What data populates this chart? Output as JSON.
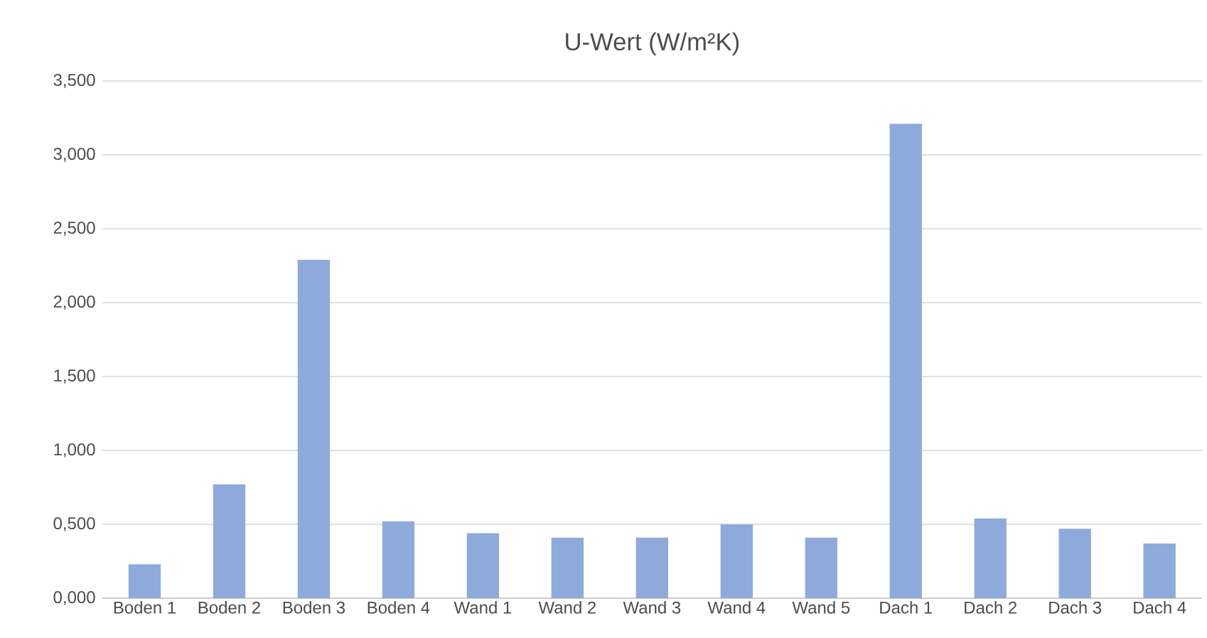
{
  "chart_data": {
    "type": "bar",
    "title": "U-Wert (W/m²K)",
    "categories": [
      "Boden 1",
      "Boden 2",
      "Boden 3",
      "Boden 4",
      "Wand 1",
      "Wand 2",
      "Wand 3",
      "Wand 4",
      "Wand 5",
      "Dach 1",
      "Dach 2",
      "Dach 3",
      "Dach 4"
    ],
    "values": [
      0.23,
      0.77,
      2.29,
      0.52,
      0.44,
      0.41,
      0.41,
      0.5,
      0.41,
      3.21,
      0.54,
      0.47,
      0.37
    ],
    "color": "#8eaadb",
    "ylim": [
      0,
      3.5
    ],
    "yticks": [
      {
        "value": 0,
        "label": "0,000"
      },
      {
        "value": 0.5,
        "label": "0,500"
      },
      {
        "value": 1,
        "label": "1,000"
      },
      {
        "value": 1.5,
        "label": "1,500"
      },
      {
        "value": 2,
        "label": "2,000"
      },
      {
        "value": 2.5,
        "label": "2,500"
      },
      {
        "value": 3,
        "label": "3,000"
      },
      {
        "value": 3.5,
        "label": "3,500"
      }
    ],
    "grid": "y"
  }
}
